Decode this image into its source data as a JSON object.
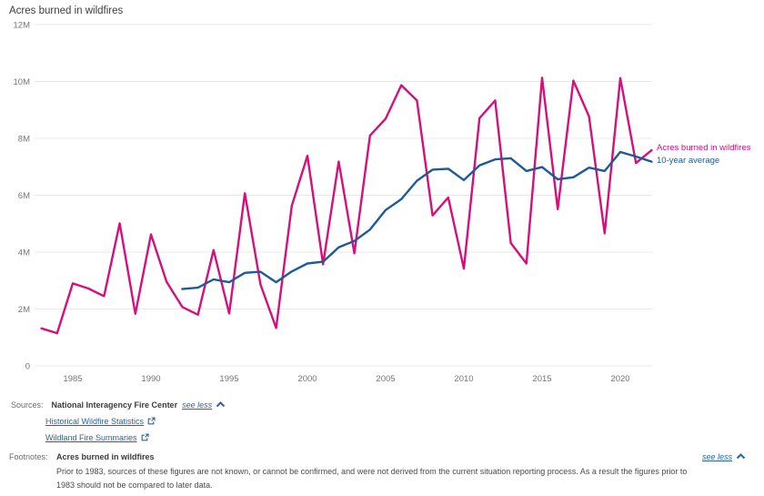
{
  "title": "Acres burned in wildfires",
  "chart_data": {
    "type": "line",
    "title": "Acres burned in wildfires",
    "grid": true,
    "legend_position": "right-of-line-ends",
    "ylim_millions": [
      0,
      12
    ],
    "y_ticks": [
      {
        "value": 0,
        "label": "0"
      },
      {
        "value": 2,
        "label": "2M"
      },
      {
        "value": 4,
        "label": "4M"
      },
      {
        "value": 6,
        "label": "6M"
      },
      {
        "value": 8,
        "label": "8M"
      },
      {
        "value": 10,
        "label": "10M"
      },
      {
        "value": 12,
        "label": "12M"
      }
    ],
    "x_ticks": [
      "1985",
      "1990",
      "1995",
      "2000",
      "2005",
      "2010",
      "2015",
      "2020"
    ],
    "x": [
      1983,
      1984,
      1985,
      1986,
      1987,
      1988,
      1989,
      1990,
      1991,
      1992,
      1993,
      1994,
      1995,
      1996,
      1997,
      1998,
      1999,
      2000,
      2001,
      2002,
      2003,
      2004,
      2005,
      2006,
      2007,
      2008,
      2009,
      2010,
      2011,
      2012,
      2013,
      2014,
      2015,
      2016,
      2017,
      2018,
      2019,
      2020,
      2021,
      2022
    ],
    "series": [
      {
        "name": "Acres burned in wildfires",
        "color": "#d60f7d",
        "values_millions": [
          1.32,
          1.15,
          2.9,
          2.72,
          2.45,
          5.01,
          1.83,
          4.62,
          2.95,
          2.07,
          1.8,
          4.07,
          1.84,
          6.07,
          2.86,
          1.33,
          5.63,
          7.39,
          3.57,
          7.18,
          3.96,
          8.1,
          8.69,
          9.87,
          9.33,
          5.29,
          5.92,
          3.42,
          8.71,
          9.33,
          4.32,
          3.6,
          10.13,
          5.51,
          10.03,
          8.77,
          4.66,
          10.12,
          7.13,
          7.58
        ]
      },
      {
        "name": "10-year average",
        "color": "#1d5a96",
        "values_millions": [
          null,
          null,
          null,
          null,
          null,
          null,
          null,
          null,
          null,
          2.7,
          2.75,
          3.04,
          2.94,
          3.27,
          3.31,
          2.94,
          3.32,
          3.6,
          3.66,
          4.17,
          4.39,
          4.79,
          5.48,
          5.86,
          6.51,
          6.9,
          6.93,
          6.53,
          7.05,
          7.26,
          7.3,
          6.85,
          6.99,
          6.56,
          6.63,
          6.97,
          6.85,
          7.52,
          7.36,
          7.18
        ]
      }
    ]
  },
  "sources": {
    "label": "Sources:",
    "name": "National Interagency Fire Center",
    "see_less": "see less",
    "links": [
      {
        "label": "Historical Wildfire Statistics"
      },
      {
        "label": "Wildland Fire Summaries"
      }
    ]
  },
  "footnotes": {
    "label": "Footnotes:",
    "heading": "Acres burned in wildfires",
    "text": "Prior to 1983, sources of these figures are not known, or cannot be confirmed, and were not derived from the current situation reporting process. As a result the figures prior to 1983 should not be compared to later data.",
    "see_less": "see less"
  },
  "colors": {
    "acres_line": "#d60f7d",
    "average_line": "#1d5a96",
    "link": "#2864a5",
    "grid": "#e8e8e8"
  }
}
